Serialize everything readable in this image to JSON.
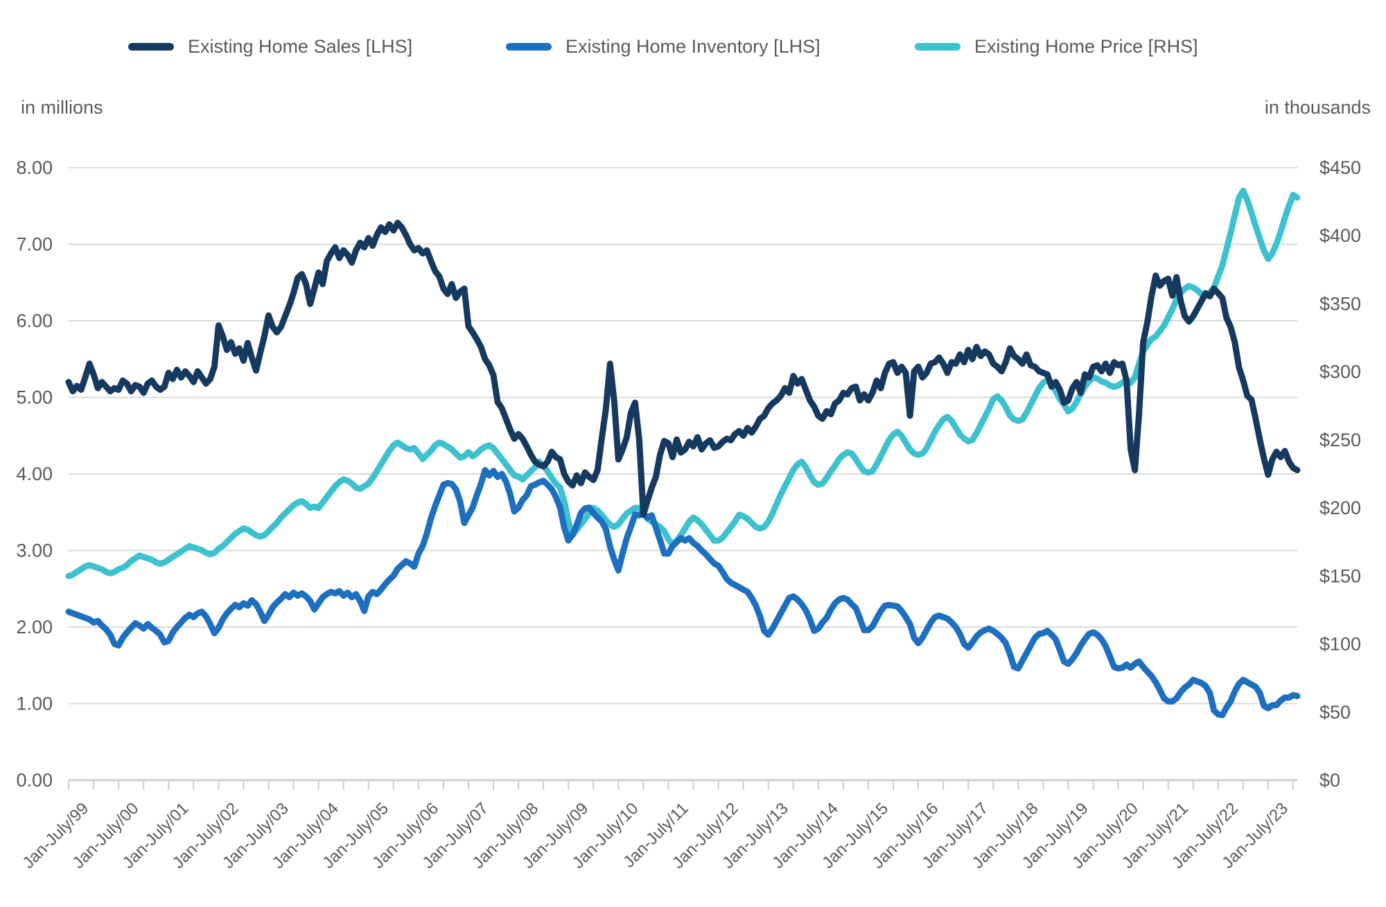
{
  "legend": [
    {
      "label": "Existing Home Sales [LHS]",
      "color": "#16395f"
    },
    {
      "label": "Existing Home Inventory [LHS]",
      "color": "#1d6fbf"
    },
    {
      "label": "Existing Home Price [RHS]",
      "color": "#3ec1ce"
    }
  ],
  "left_axis": {
    "title": "in millions",
    "tick_labels": [
      "8.00",
      "7.00",
      "6.00",
      "5.00",
      "4.00",
      "3.00",
      "2.00",
      "1.00",
      "0.00"
    ],
    "min": 0,
    "max": 8
  },
  "right_axis": {
    "title": "in thousands",
    "tick_labels": [
      "$450",
      "$400",
      "$350",
      "$300",
      "$250",
      "$200",
      "$150",
      "$100",
      "$50",
      "$0"
    ],
    "min": 0,
    "max": 450
  },
  "x_axis": {
    "labels": [
      "Jan-July/99",
      "Jan-July/00",
      "Jan-July/01",
      "Jan-July/02",
      "Jan-July/03",
      "Jan-July/04",
      "Jan-July/05",
      "Jan-July/06",
      "Jan-July/07",
      "Jan-July/08",
      "Jan-July/09",
      "Jan-July/10",
      "Jan-July/11",
      "Jan-July/12",
      "Jan-July/13",
      "Jan-July/14",
      "Jan-July/15",
      "Jan-July/16",
      "Jan-July/17",
      "Jan-July/18",
      "Jan-July/19",
      "Jan-July/20",
      "Jan-July/21",
      "Jan-July/22",
      "Jan-July/23"
    ],
    "ticks_per_year": 2
  },
  "chart_data": {
    "type": "line",
    "frequency": "monthly",
    "x_start": "1999-01",
    "x_end": "2023-08",
    "grid": "horizontal",
    "legend_position": "top",
    "ylim_left": [
      0,
      8
    ],
    "ylim_right": [
      0,
      450
    ],
    "gridline_color": "#d9d9d9",
    "axis_text_color": "#58595b",
    "series": [
      {
        "name": "Existing Home Sales [LHS]",
        "axis": "left",
        "unit": "millions",
        "color": "#16395f",
        "values": [
          5.2,
          5.08,
          5.15,
          5.1,
          5.26,
          5.44,
          5.3,
          5.12,
          5.2,
          5.14,
          5.08,
          5.12,
          5.1,
          5.22,
          5.18,
          5.08,
          5.16,
          5.14,
          5.06,
          5.18,
          5.22,
          5.14,
          5.1,
          5.14,
          5.32,
          5.24,
          5.36,
          5.26,
          5.34,
          5.28,
          5.2,
          5.34,
          5.26,
          5.18,
          5.24,
          5.4,
          5.94,
          5.8,
          5.62,
          5.72,
          5.57,
          5.64,
          5.48,
          5.71,
          5.52,
          5.35,
          5.58,
          5.8,
          6.07,
          5.92,
          5.85,
          5.92,
          6.06,
          6.2,
          6.36,
          6.56,
          6.61,
          6.48,
          6.22,
          6.42,
          6.63,
          6.48,
          6.78,
          6.88,
          6.96,
          6.82,
          6.92,
          6.86,
          6.76,
          6.92,
          7.02,
          6.96,
          7.08,
          6.98,
          7.12,
          7.22,
          7.16,
          7.26,
          7.18,
          7.28,
          7.22,
          7.12,
          7.0,
          6.92,
          6.95,
          6.88,
          6.92,
          6.78,
          6.65,
          6.58,
          6.42,
          6.35,
          6.48,
          6.3,
          6.38,
          6.42,
          5.93,
          5.85,
          5.76,
          5.66,
          5.5,
          5.42,
          5.29,
          4.94,
          4.86,
          4.72,
          4.58,
          4.46,
          4.52,
          4.46,
          4.36,
          4.25,
          4.16,
          4.12,
          4.1,
          4.16,
          4.29,
          4.22,
          4.19,
          4.0,
          3.9,
          3.85,
          3.98,
          3.88,
          4.02,
          3.96,
          3.92,
          4.05,
          4.46,
          4.85,
          5.44,
          4.95,
          4.19,
          4.32,
          4.48,
          4.8,
          4.93,
          4.45,
          3.47,
          3.65,
          3.82,
          3.96,
          4.25,
          4.43,
          4.4,
          4.22,
          4.45,
          4.28,
          4.32,
          4.42,
          4.36,
          4.48,
          4.32,
          4.4,
          4.44,
          4.34,
          4.36,
          4.42,
          4.46,
          4.44,
          4.52,
          4.56,
          4.5,
          4.6,
          4.54,
          4.62,
          4.72,
          4.76,
          4.86,
          4.92,
          4.96,
          5.02,
          5.12,
          5.06,
          5.28,
          5.18,
          5.24,
          5.1,
          4.96,
          4.88,
          4.76,
          4.72,
          4.82,
          4.78,
          4.92,
          4.96,
          5.06,
          5.04,
          5.12,
          5.14,
          4.96,
          5.04,
          4.96,
          5.06,
          5.22,
          5.12,
          5.32,
          5.44,
          5.46,
          5.32,
          5.4,
          5.32,
          4.76,
          5.34,
          5.4,
          5.26,
          5.32,
          5.44,
          5.46,
          5.52,
          5.44,
          5.32,
          5.46,
          5.44,
          5.56,
          5.46,
          5.62,
          5.5,
          5.66,
          5.54,
          5.6,
          5.56,
          5.44,
          5.4,
          5.34,
          5.46,
          5.64,
          5.54,
          5.5,
          5.44,
          5.56,
          5.42,
          5.4,
          5.34,
          5.32,
          5.3,
          5.14,
          5.2,
          5.1,
          4.93,
          4.96,
          5.12,
          5.2,
          5.06,
          5.3,
          5.26,
          5.4,
          5.42,
          5.34,
          5.44,
          5.32,
          5.46,
          5.42,
          5.44,
          5.22,
          4.32,
          4.05,
          4.78,
          5.72,
          5.98,
          6.32,
          6.59,
          6.46,
          6.52,
          6.55,
          6.33,
          6.57,
          6.26,
          6.06,
          5.99,
          6.06,
          6.16,
          6.26,
          6.36,
          6.32,
          6.42,
          6.36,
          6.3,
          6.04,
          5.92,
          5.72,
          5.39,
          5.22,
          5.02,
          4.97,
          4.72,
          4.45,
          4.2,
          3.99,
          4.19,
          4.29,
          4.22,
          4.3,
          4.16,
          4.08,
          4.05
        ]
      },
      {
        "name": "Existing Home Inventory [LHS]",
        "axis": "left",
        "unit": "millions",
        "color": "#1d6fbf",
        "values": [
          2.2,
          2.18,
          2.16,
          2.14,
          2.12,
          2.1,
          2.06,
          2.08,
          2.02,
          1.97,
          1.9,
          1.78,
          1.76,
          1.86,
          1.93,
          1.99,
          2.05,
          2.02,
          1.98,
          2.04,
          1.99,
          1.95,
          1.9,
          1.8,
          1.82,
          1.93,
          2.0,
          2.06,
          2.12,
          2.16,
          2.13,
          2.18,
          2.2,
          2.14,
          2.04,
          1.92,
          1.99,
          2.1,
          2.18,
          2.24,
          2.29,
          2.26,
          2.31,
          2.28,
          2.35,
          2.3,
          2.2,
          2.08,
          2.16,
          2.26,
          2.32,
          2.37,
          2.43,
          2.39,
          2.45,
          2.41,
          2.44,
          2.4,
          2.34,
          2.23,
          2.31,
          2.39,
          2.43,
          2.46,
          2.44,
          2.47,
          2.41,
          2.45,
          2.39,
          2.43,
          2.34,
          2.21,
          2.4,
          2.46,
          2.43,
          2.49,
          2.56,
          2.62,
          2.67,
          2.76,
          2.81,
          2.86,
          2.83,
          2.79,
          2.96,
          3.06,
          3.22,
          3.42,
          3.58,
          3.72,
          3.86,
          3.88,
          3.87,
          3.8,
          3.64,
          3.36,
          3.46,
          3.56,
          3.72,
          3.87,
          4.05,
          3.98,
          4.04,
          3.96,
          4.0,
          3.9,
          3.74,
          3.51,
          3.56,
          3.66,
          3.72,
          3.84,
          3.86,
          3.89,
          3.91,
          3.86,
          3.8,
          3.7,
          3.56,
          3.3,
          3.13,
          3.21,
          3.33,
          3.49,
          3.55,
          3.56,
          3.49,
          3.43,
          3.38,
          3.28,
          3.05,
          2.88,
          2.74,
          2.96,
          3.16,
          3.31,
          3.47,
          3.46,
          3.48,
          3.43,
          3.46,
          3.3,
          3.14,
          2.96,
          2.96,
          3.06,
          3.11,
          3.16,
          3.13,
          3.16,
          3.1,
          3.06,
          3.0,
          2.95,
          2.89,
          2.83,
          2.8,
          2.72,
          2.63,
          2.58,
          2.55,
          2.52,
          2.49,
          2.46,
          2.38,
          2.28,
          2.14,
          1.95,
          1.9,
          1.98,
          2.08,
          2.18,
          2.28,
          2.38,
          2.4,
          2.36,
          2.3,
          2.22,
          2.1,
          1.95,
          1.98,
          2.06,
          2.12,
          2.23,
          2.31,
          2.36,
          2.38,
          2.36,
          2.3,
          2.25,
          2.11,
          1.96,
          1.96,
          2.01,
          2.11,
          2.21,
          2.28,
          2.29,
          2.28,
          2.27,
          2.21,
          2.13,
          2.04,
          1.86,
          1.79,
          1.86,
          1.96,
          2.06,
          2.13,
          2.15,
          2.13,
          2.11,
          2.06,
          2.0,
          1.91,
          1.78,
          1.73,
          1.8,
          1.88,
          1.93,
          1.96,
          1.98,
          1.95,
          1.91,
          1.86,
          1.79,
          1.65,
          1.48,
          1.46,
          1.56,
          1.66,
          1.76,
          1.86,
          1.91,
          1.92,
          1.95,
          1.9,
          1.84,
          1.7,
          1.55,
          1.52,
          1.58,
          1.66,
          1.76,
          1.84,
          1.91,
          1.93,
          1.9,
          1.84,
          1.75,
          1.62,
          1.48,
          1.46,
          1.47,
          1.51,
          1.47,
          1.52,
          1.55,
          1.48,
          1.42,
          1.36,
          1.28,
          1.18,
          1.07,
          1.03,
          1.03,
          1.07,
          1.15,
          1.21,
          1.25,
          1.31,
          1.29,
          1.27,
          1.23,
          1.14,
          0.91,
          0.86,
          0.85,
          0.95,
          1.03,
          1.16,
          1.26,
          1.31,
          1.28,
          1.25,
          1.22,
          1.14,
          0.97,
          0.94,
          0.98,
          0.98,
          1.04,
          1.08,
          1.08,
          1.11,
          1.1
        ]
      },
      {
        "name": "Existing Home Price [RHS]",
        "axis": "right",
        "unit": "thousands USD",
        "color": "#3ec1ce",
        "values": [
          150,
          151,
          153,
          155,
          157,
          158,
          157,
          156,
          155,
          153,
          152,
          153,
          155,
          156,
          158,
          161,
          163,
          165,
          164,
          163,
          162,
          160,
          159,
          160,
          162,
          164,
          166,
          168,
          170,
          172,
          171,
          170,
          169,
          167,
          166,
          167,
          170,
          172,
          175,
          178,
          181,
          183,
          185,
          184,
          182,
          180,
          179,
          180,
          183,
          186,
          189,
          193,
          196,
          199,
          202,
          204,
          205,
          203,
          200,
          201,
          200,
          204,
          208,
          212,
          216,
          219,
          221,
          220,
          218,
          215,
          214,
          216,
          218,
          222,
          227,
          232,
          237,
          242,
          246,
          248,
          246,
          244,
          243,
          244,
          240,
          236,
          239,
          242,
          246,
          248,
          247,
          245,
          243,
          240,
          237,
          238,
          241,
          238,
          240,
          243,
          245,
          246,
          244,
          240,
          236,
          232,
          228,
          224,
          223,
          221,
          224,
          227,
          230,
          234,
          231,
          227,
          222,
          218,
          215,
          205,
          190,
          180,
          184,
          188,
          192,
          196,
          200,
          198,
          195,
          191,
          188,
          186,
          188,
          192,
          196,
          198,
          200,
          200,
          196,
          192,
          190,
          188,
          186,
          183,
          177,
          173,
          176,
          180,
          185,
          190,
          193,
          191,
          188,
          184,
          180,
          176,
          176,
          178,
          182,
          186,
          190,
          195,
          194,
          192,
          189,
          186,
          185,
          186,
          190,
          196,
          203,
          210,
          216,
          222,
          228,
          232,
          234,
          230,
          224,
          219,
          217,
          218,
          222,
          227,
          231,
          236,
          239,
          241,
          240,
          236,
          231,
          227,
          226,
          227,
          232,
          238,
          244,
          250,
          254,
          256,
          253,
          248,
          243,
          240,
          239,
          240,
          244,
          250,
          256,
          261,
          265,
          267,
          264,
          259,
          254,
          251,
          249,
          250,
          255,
          261,
          267,
          273,
          280,
          282,
          279,
          274,
          268,
          265,
          264,
          265,
          270,
          276,
          282,
          288,
          292,
          294,
          291,
          286,
          280,
          276,
          271,
          273,
          278,
          284,
          289,
          293,
          296,
          295,
          293,
          292,
          290,
          289,
          290,
          292,
          294,
          292,
          296,
          306,
          315,
          320,
          324,
          326,
          330,
          334,
          340,
          346,
          353,
          358,
          361,
          363,
          362,
          360,
          357,
          356,
          358,
          362,
          370,
          378,
          390,
          402,
          415,
          428,
          433,
          426,
          417,
          407,
          398,
          389,
          383,
          387,
          394,
          403,
          413,
          422,
          430,
          428
        ]
      }
    ]
  }
}
